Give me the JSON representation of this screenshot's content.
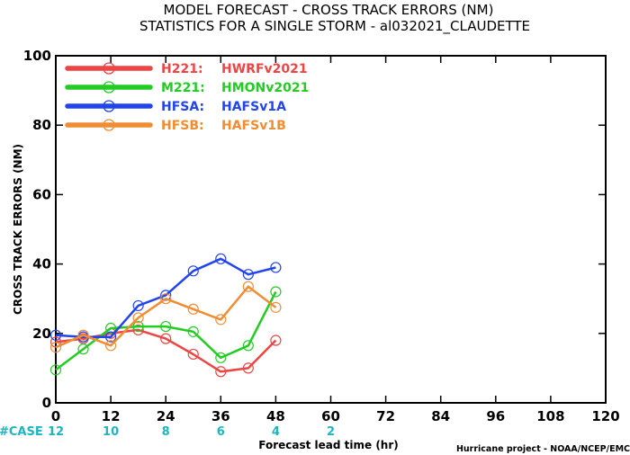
{
  "chart_data": {
    "type": "line",
    "title": "MODEL FORECAST - CROSS TRACK ERRORS (NM)",
    "subtitle": "STATISTICS FOR A SINGLE STORM - al032021_CLAUDETTE",
    "xlabel": "Forecast lead time (hr)",
    "ylabel": "CROSS TRACK ERRORS (NM)",
    "xlim": [
      0,
      120
    ],
    "ylim": [
      0,
      100
    ],
    "xticks": [
      "0",
      "12",
      "24",
      "36",
      "48",
      "60",
      "72",
      "84",
      "96",
      "108",
      "120"
    ],
    "yticks": [
      "0",
      "20",
      "40",
      "60",
      "80",
      "100"
    ],
    "case_label": "#CASE",
    "case_counts": [
      {
        "x": 0,
        "label": "12"
      },
      {
        "x": 12,
        "label": "10"
      },
      {
        "x": 24,
        "label": "8"
      },
      {
        "x": 36,
        "label": "6"
      },
      {
        "x": 48,
        "label": "4"
      },
      {
        "x": 60,
        "label": "2"
      }
    ],
    "credit": "Hurricane project - NOAA/NCEP/EMC",
    "legend_position": "top-left",
    "grid": false,
    "series": [
      {
        "name": "H221:",
        "desc": "HWRFv2021",
        "color": "#ee4444",
        "x": [
          0,
          6,
          12,
          18,
          24,
          30,
          36,
          42,
          48
        ],
        "y": [
          17.5,
          18.5,
          20,
          21,
          18.5,
          14,
          9,
          10,
          18
        ]
      },
      {
        "name": "M221:",
        "desc": "HMONv2021",
        "color": "#22cc22",
        "x": [
          0,
          6,
          12,
          18,
          24,
          30,
          36,
          42,
          48
        ],
        "y": [
          9.5,
          15.5,
          21.5,
          22,
          22,
          20.5,
          13,
          16.5,
          32
        ]
      },
      {
        "name": "HFSA:",
        "desc": "HAFSv1A",
        "color": "#2244ee",
        "x": [
          0,
          6,
          12,
          18,
          24,
          30,
          36,
          42,
          48
        ],
        "y": [
          19.5,
          19,
          19,
          28,
          31,
          38,
          41.5,
          37,
          39
        ]
      },
      {
        "name": "HFSB:",
        "desc": "HAFSv1B",
        "color": "#f08c32",
        "x": [
          0,
          6,
          12,
          18,
          24,
          30,
          36,
          42,
          48
        ],
        "y": [
          16,
          19.5,
          16.5,
          24.5,
          30,
          27,
          24,
          33.5,
          27.5
        ]
      }
    ]
  }
}
